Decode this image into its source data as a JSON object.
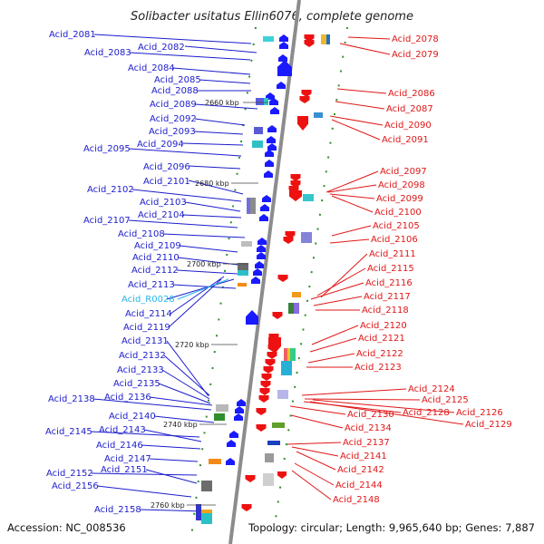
{
  "title": "Solibacter usitatus Ellin6076, complete genome",
  "footer": {
    "accession": "Accession: NC_008536",
    "topology": "Topology: circular; Length: 9,965,640 bp; Genes: 7,887"
  },
  "colors": {
    "left_label": "#1c1ccc",
    "right_label": "#e01616",
    "special_label": "#27b7e8",
    "left_arrow": "#1a1aff",
    "right_arrow": "#ee1111",
    "backbone": "#8a8a8a",
    "tick": "#2f8f2f"
  },
  "kbp_markers": [
    "2660 kbp",
    "2680 kbp",
    "2700 kbp",
    "2720 kbp",
    "2740 kbp",
    "2760 kbp"
  ],
  "left_labels": [
    "Acid_2081",
    "Acid_2082",
    "Acid_2083",
    "Acid_2084",
    "Acid_2085",
    "Acid_2088",
    "Acid_2089",
    "Acid_2092",
    "Acid_2093",
    "Acid_2094",
    "Acid_2095",
    "Acid_2096",
    "Acid_2101",
    "Acid_2102",
    "Acid_2103",
    "Acid_2104",
    "Acid_2107",
    "Acid_2108",
    "Acid_2109",
    "Acid_2110",
    "Acid_2112",
    "Acid_2113",
    "Acid_R0028",
    "Acid_2114",
    "Acid_2119",
    "Acid_2131",
    "Acid_2132",
    "Acid_2133",
    "Acid_2135",
    "Acid_2138",
    "Acid_2136",
    "Acid_2140",
    "Acid_2145",
    "Acid_2143",
    "Acid_2146",
    "Acid_2147",
    "Acid_2152",
    "Acid_2151",
    "Acid_2156",
    "Acid_2158"
  ],
  "right_labels": [
    "Acid_2078",
    "Acid_2079",
    "Acid_2086",
    "Acid_2087",
    "Acid_2090",
    "Acid_2091",
    "Acid_2097",
    "Acid_2098",
    "Acid_2099",
    "Acid_2100",
    "Acid_2105",
    "Acid_2106",
    "Acid_2111",
    "Acid_2115",
    "Acid_2116",
    "Acid_2117",
    "Acid_2118",
    "Acid_2120",
    "Acid_2121",
    "Acid_2122",
    "Acid_2123",
    "Acid_2124",
    "Acid_2125",
    "Acid_2126",
    "Acid_2128",
    "Acid_2129",
    "Acid_2130",
    "Acid_2134",
    "Acid_2137",
    "Acid_2141",
    "Acid_2142",
    "Acid_2144",
    "Acid_2148"
  ]
}
